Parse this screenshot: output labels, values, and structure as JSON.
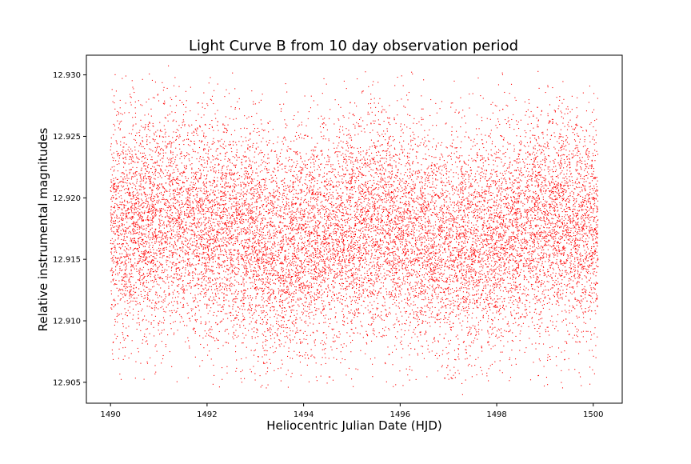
{
  "chart_data": {
    "type": "scatter",
    "title": "Light Curve B from 10 day observation period",
    "xlabel": "Heliocentric Julian Date (HJD)",
    "ylabel": "Relative instrumental magnitudes",
    "xlim": [
      1489.5,
      1500.6
    ],
    "ylim": [
      12.9033,
      12.9316
    ],
    "x_ticks": [
      1490,
      1492,
      1494,
      1496,
      1498,
      1500
    ],
    "x_tick_labels": [
      "1490",
      "1492",
      "1494",
      "1496",
      "1498",
      "1500"
    ],
    "y_ticks": [
      12.905,
      12.91,
      12.915,
      12.92,
      12.925,
      12.93
    ],
    "y_tick_labels": [
      "12.905",
      "12.910",
      "12.915",
      "12.920",
      "12.925",
      "12.930"
    ],
    "grid": false,
    "legend": "none",
    "marker_color": "#ff0000",
    "series": [
      {
        "x_range": [
          1490.0,
          1500.1
        ],
        "point_count_estimate": 16000,
        "y_spread_note": "dense band 12.911–12.923, sparse tails to 12.9045 and 12.9305",
        "mean_profile": [
          {
            "x": 1490.0,
            "y": 12.9172
          },
          {
            "x": 1490.5,
            "y": 12.9178
          },
          {
            "x": 1491.0,
            "y": 12.9182
          },
          {
            "x": 1491.5,
            "y": 12.918
          },
          {
            "x": 1492.0,
            "y": 12.9176
          },
          {
            "x": 1492.5,
            "y": 12.9171
          },
          {
            "x": 1493.0,
            "y": 12.9164
          },
          {
            "x": 1493.5,
            "y": 12.916
          },
          {
            "x": 1494.0,
            "y": 12.9163
          },
          {
            "x": 1494.5,
            "y": 12.917
          },
          {
            "x": 1495.0,
            "y": 12.9177
          },
          {
            "x": 1495.5,
            "y": 12.918
          },
          {
            "x": 1496.0,
            "y": 12.9174
          },
          {
            "x": 1496.5,
            "y": 12.9166
          },
          {
            "x": 1497.0,
            "y": 12.9161
          },
          {
            "x": 1497.5,
            "y": 12.9162
          },
          {
            "x": 1498.0,
            "y": 12.9168
          },
          {
            "x": 1498.5,
            "y": 12.9176
          },
          {
            "x": 1499.0,
            "y": 12.918
          },
          {
            "x": 1499.5,
            "y": 12.9177
          },
          {
            "x": 1500.1,
            "y": 12.9172
          }
        ],
        "scatter_sigma": 0.0046
      }
    ]
  }
}
